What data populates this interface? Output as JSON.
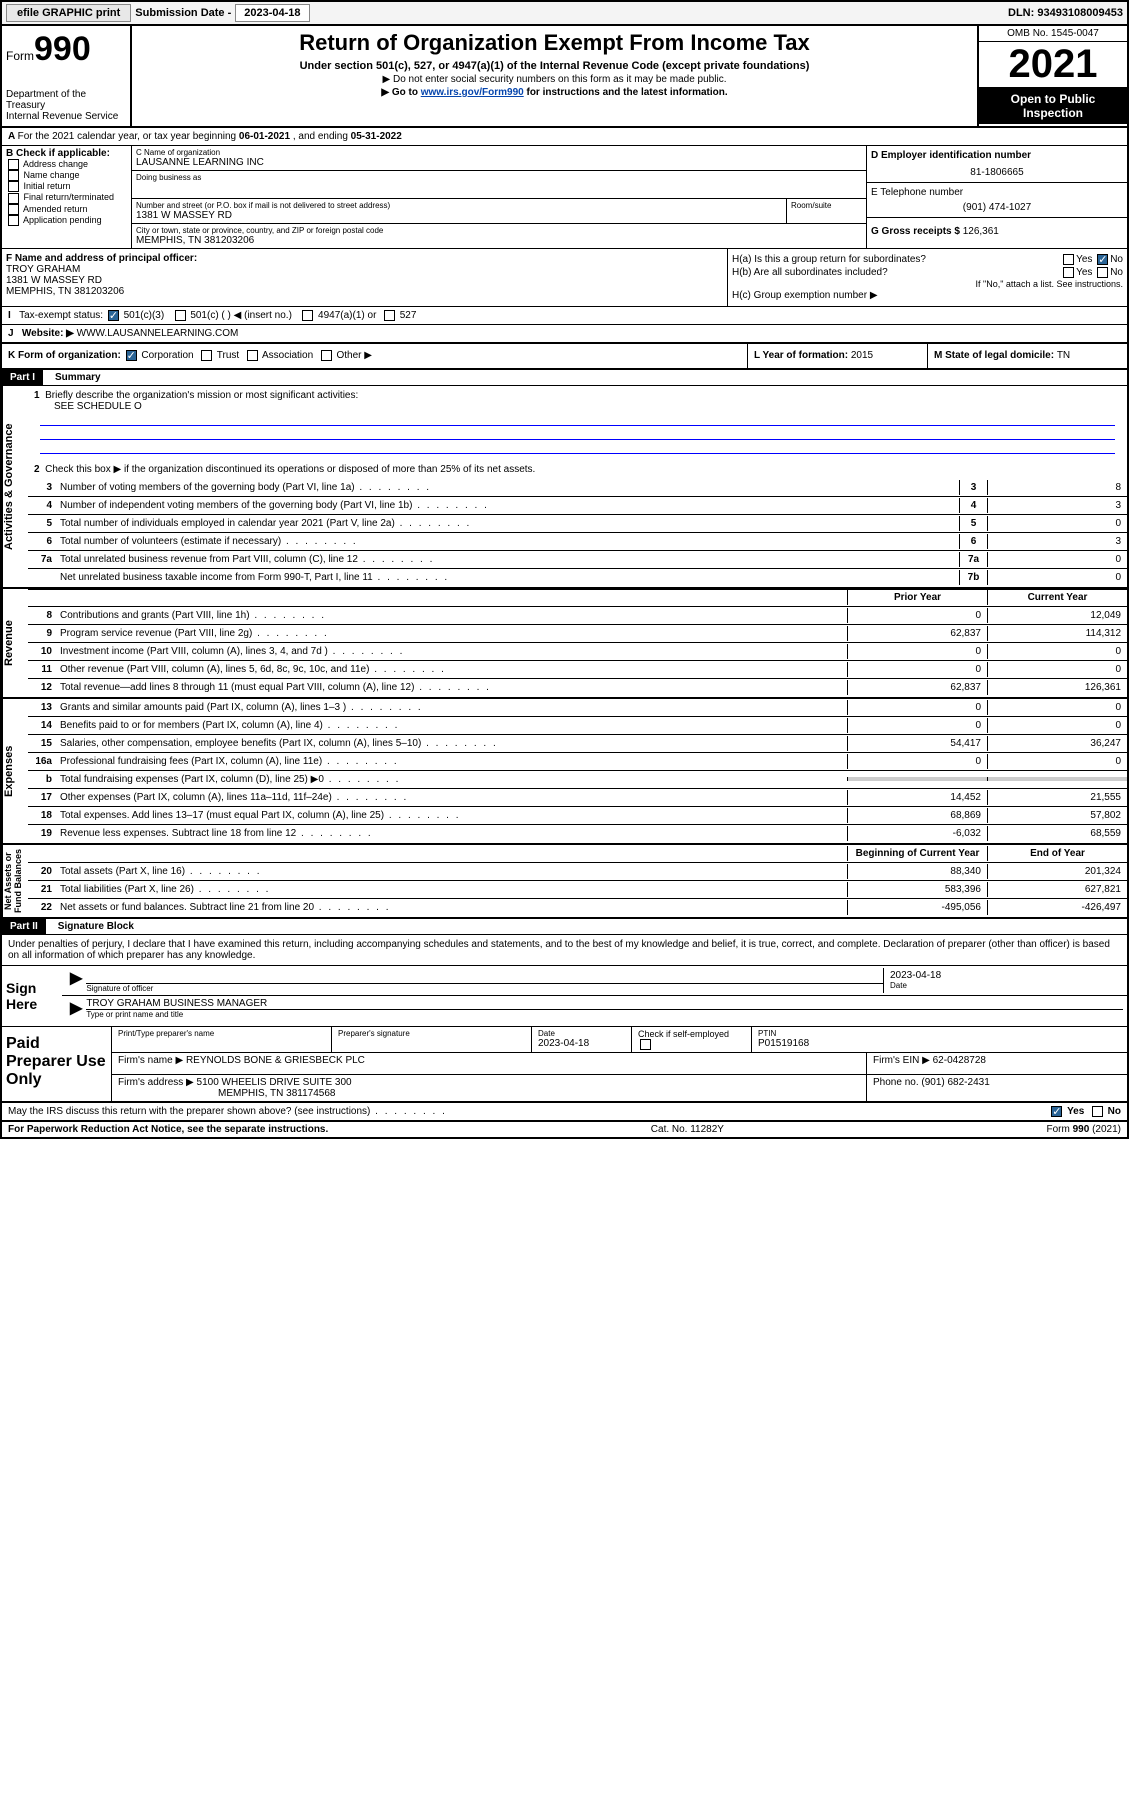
{
  "topbar": {
    "efile": "efile GRAPHIC print",
    "sub_label": "Submission Date - ",
    "sub_date": "2023-04-18",
    "dln": "DLN: 93493108009453"
  },
  "header": {
    "form_prefix": "Form",
    "form_num": "990",
    "dept": "Department of the Treasury\nInternal Revenue Service",
    "title": "Return of Organization Exempt From Income Tax",
    "sub": "Under section 501(c), 527, or 4947(a)(1) of the Internal Revenue Code (except private foundations)",
    "note1": "▶ Do not enter social security numbers on this form as it may be made public.",
    "note2_pre": "▶ Go to ",
    "note2_link": "www.irs.gov/Form990",
    "note2_post": " for instructions and the latest information.",
    "omb": "OMB No. 1545-0047",
    "year": "2021",
    "open": "Open to Public Inspection"
  },
  "A": {
    "text": "For the 2021 calendar year, or tax year beginning ",
    "begin": "06-01-2021",
    "mid": " , and ending ",
    "end": "05-31-2022"
  },
  "B": {
    "label": "B Check if applicable:",
    "opts": [
      "Address change",
      "Name change",
      "Initial return",
      "Final return/terminated",
      "Amended return",
      "Application pending"
    ]
  },
  "C": {
    "name_lbl": "C Name of organization",
    "name": "LAUSANNE LEARNING INC",
    "dba_lbl": "Doing business as",
    "addr_lbl": "Number and street (or P.O. box if mail is not delivered to street address)",
    "room_lbl": "Room/suite",
    "addr": "1381 W MASSEY RD",
    "city_lbl": "City or town, state or province, country, and ZIP or foreign postal code",
    "city": "MEMPHIS, TN  381203206"
  },
  "D": {
    "lbl": "D Employer identification number",
    "val": "81-1806665"
  },
  "E": {
    "lbl": "E Telephone number",
    "val": "(901) 474-1027"
  },
  "G": {
    "lbl": "G Gross receipts $ ",
    "val": "126,361"
  },
  "F": {
    "lbl": "F Name and address of principal officer:",
    "name": "TROY GRAHAM",
    "addr1": "1381 W MASSEY RD",
    "addr2": "MEMPHIS, TN  381203206"
  },
  "H": {
    "a": "H(a)  Is this a group return for subordinates?",
    "a_yes": "Yes",
    "a_no": "No",
    "b": "H(b)  Are all subordinates included?",
    "b_yes": "Yes",
    "b_no": "No",
    "b_note": "If \"No,\" attach a list. See instructions.",
    "c": "H(c)  Group exemption number ▶"
  },
  "I": {
    "lbl": "Tax-exempt status:",
    "o1": "501(c)(3)",
    "o2": "501(c) (  ) ◀ (insert no.)",
    "o3": "4947(a)(1) or",
    "o4": "527"
  },
  "J": {
    "lbl": "Website: ▶",
    "val": "WWW.LAUSANNELEARNING.COM"
  },
  "K": {
    "lbl": "K Form of organization:",
    "o1": "Corporation",
    "o2": "Trust",
    "o3": "Association",
    "o4": "Other ▶"
  },
  "L": {
    "lbl": "L Year of formation: ",
    "val": "2015"
  },
  "M": {
    "lbl": "M State of legal domicile: ",
    "val": "TN"
  },
  "part1": {
    "hdr": "Part I",
    "title": "Summary"
  },
  "summary": {
    "tabs": [
      "Activities & Governance",
      "Revenue",
      "Expenses",
      "Net Assets or\nFund Balances"
    ],
    "line1": "Briefly describe the organization's mission or most significant activities:",
    "line1_val": "SEE SCHEDULE O",
    "line2": "Check this box ▶        if the organization discontinued its operations or disposed of more than 25% of its net assets.",
    "lines_a": [
      {
        "n": "3",
        "t": "Number of voting members of the governing body (Part VI, line 1a)",
        "box": "3",
        "v": "8"
      },
      {
        "n": "4",
        "t": "Number of independent voting members of the governing body (Part VI, line 1b)",
        "box": "4",
        "v": "3"
      },
      {
        "n": "5",
        "t": "Total number of individuals employed in calendar year 2021 (Part V, line 2a)",
        "box": "5",
        "v": "0"
      },
      {
        "n": "6",
        "t": "Total number of volunteers (estimate if necessary)",
        "box": "6",
        "v": "3"
      },
      {
        "n": "7a",
        "t": "Total unrelated business revenue from Part VIII, column (C), line 12",
        "box": "7a",
        "v": "0"
      },
      {
        "n": "",
        "t": "Net unrelated business taxable income from Form 990-T, Part I, line 11",
        "box": "7b",
        "v": "0"
      }
    ],
    "col_hdr_prior": "Prior Year",
    "col_hdr_curr": "Current Year",
    "lines_rev": [
      {
        "n": "8",
        "t": "Contributions and grants (Part VIII, line 1h)",
        "p": "0",
        "c": "12,049"
      },
      {
        "n": "9",
        "t": "Program service revenue (Part VIII, line 2g)",
        "p": "62,837",
        "c": "114,312"
      },
      {
        "n": "10",
        "t": "Investment income (Part VIII, column (A), lines 3, 4, and 7d )",
        "p": "0",
        "c": "0"
      },
      {
        "n": "11",
        "t": "Other revenue (Part VIII, column (A), lines 5, 6d, 8c, 9c, 10c, and 11e)",
        "p": "0",
        "c": "0"
      },
      {
        "n": "12",
        "t": "Total revenue—add lines 8 through 11 (must equal Part VIII, column (A), line 12)",
        "p": "62,837",
        "c": "126,361"
      }
    ],
    "lines_exp": [
      {
        "n": "13",
        "t": "Grants and similar amounts paid (Part IX, column (A), lines 1–3 )",
        "p": "0",
        "c": "0"
      },
      {
        "n": "14",
        "t": "Benefits paid to or for members (Part IX, column (A), line 4)",
        "p": "0",
        "c": "0"
      },
      {
        "n": "15",
        "t": "Salaries, other compensation, employee benefits (Part IX, column (A), lines 5–10)",
        "p": "54,417",
        "c": "36,247"
      },
      {
        "n": "16a",
        "t": "Professional fundraising fees (Part IX, column (A), line 11e)",
        "p": "0",
        "c": "0"
      },
      {
        "n": "b",
        "t": "Total fundraising expenses (Part IX, column (D), line 25) ▶0",
        "p": "",
        "c": "",
        "shade": true
      },
      {
        "n": "17",
        "t": "Other expenses (Part IX, column (A), lines 11a–11d, 11f–24e)",
        "p": "14,452",
        "c": "21,555"
      },
      {
        "n": "18",
        "t": "Total expenses. Add lines 13–17 (must equal Part IX, column (A), line 25)",
        "p": "68,869",
        "c": "57,802"
      },
      {
        "n": "19",
        "t": "Revenue less expenses. Subtract line 18 from line 12",
        "p": "-6,032",
        "c": "68,559"
      }
    ],
    "col_hdr_beg": "Beginning of Current Year",
    "col_hdr_end": "End of Year",
    "lines_net": [
      {
        "n": "20",
        "t": "Total assets (Part X, line 16)",
        "p": "88,340",
        "c": "201,324"
      },
      {
        "n": "21",
        "t": "Total liabilities (Part X, line 26)",
        "p": "583,396",
        "c": "627,821"
      },
      {
        "n": "22",
        "t": "Net assets or fund balances. Subtract line 21 from line 20",
        "p": "-495,056",
        "c": "-426,497"
      }
    ]
  },
  "part2": {
    "hdr": "Part II",
    "title": "Signature Block"
  },
  "sig": {
    "decl": "Under penalties of perjury, I declare that I have examined this return, including accompanying schedules and statements, and to the best of my knowledge and belief, it is true, correct, and complete. Declaration of preparer (other than officer) is based on all information of which preparer has any knowledge.",
    "sign_here": "Sign Here",
    "sig_officer": "Signature of officer",
    "date_lbl": "Date",
    "date_val": "2023-04-18",
    "name_title": "TROY GRAHAM  BUSINESS MANAGER",
    "type_name": "Type or print name and title"
  },
  "paid": {
    "lbl": "Paid Preparer Use Only",
    "h1": "Print/Type preparer's name",
    "h2": "Preparer's signature",
    "h3": "Date",
    "h3v": "2023-04-18",
    "h4": "Check        if self-employed",
    "h5": "PTIN",
    "h5v": "P01519168",
    "firm_lbl": "Firm's name     ▶",
    "firm": "REYNOLDS BONE & GRIESBECK PLC",
    "ein_lbl": "Firm's EIN ▶",
    "ein": "62-0428728",
    "addr_lbl": "Firm's address ▶",
    "addr1": "5100 WHEELIS DRIVE SUITE 300",
    "addr2": "MEMPHIS, TN  381174568",
    "phone_lbl": "Phone no. ",
    "phone": "(901) 682-2431"
  },
  "discuss": {
    "q": "May the IRS discuss this return with the preparer shown above? (see instructions)",
    "yes": "Yes",
    "no": "No"
  },
  "foot": {
    "l": "For Paperwork Reduction Act Notice, see the separate instructions.",
    "c": "Cat. No. 11282Y",
    "r": "Form 990 (2021)"
  }
}
